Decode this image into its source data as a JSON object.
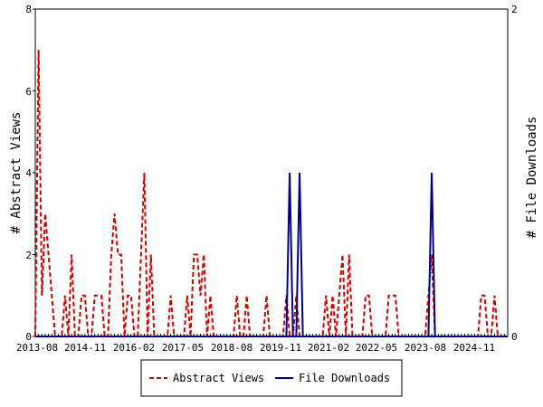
{
  "chart_data": {
    "type": "line",
    "x_tick_labels": [
      "2013-08",
      "2014-11",
      "2016-02",
      "2017-05",
      "2018-08",
      "2019-11",
      "2021-02",
      "2022-05",
      "2023-08",
      "2024-11"
    ],
    "y_left": {
      "label": "# Abstract Views",
      "ticks": [
        "0",
        "2",
        "4",
        "6",
        "8"
      ],
      "range": [
        0,
        8
      ]
    },
    "y_right": {
      "label": "# File Downloads",
      "ticks": [
        "0",
        "2"
      ],
      "range": [
        0,
        2
      ]
    },
    "months_start": "2013-08",
    "months_end": "2025-06",
    "series": [
      {
        "name": "Abstract Views",
        "axis": "left",
        "color": "#cc0000",
        "style": "dashed",
        "points": [
          [
            "2013-08",
            0
          ],
          [
            "2013-09",
            7
          ],
          [
            "2013-10",
            1
          ],
          [
            "2013-11",
            3
          ],
          [
            "2013-12",
            2
          ],
          [
            "2014-01",
            1
          ],
          [
            "2014-02",
            0
          ],
          [
            "2014-03",
            0
          ],
          [
            "2014-04",
            0
          ],
          [
            "2014-05",
            1
          ],
          [
            "2014-06",
            0
          ],
          [
            "2014-07",
            2
          ],
          [
            "2014-08",
            0
          ],
          [
            "2014-09",
            0
          ],
          [
            "2014-10",
            1
          ],
          [
            "2014-11",
            1
          ],
          [
            "2014-12",
            0
          ],
          [
            "2015-01",
            0
          ],
          [
            "2015-02",
            1
          ],
          [
            "2015-03",
            1
          ],
          [
            "2015-04",
            1
          ],
          [
            "2015-05",
            0
          ],
          [
            "2015-06",
            0
          ],
          [
            "2015-07",
            2
          ],
          [
            "2015-08",
            3
          ],
          [
            "2015-09",
            2
          ],
          [
            "2015-10",
            2
          ],
          [
            "2015-11",
            0
          ],
          [
            "2015-12",
            1
          ],
          [
            "2016-01",
            1
          ],
          [
            "2016-02",
            0
          ],
          [
            "2016-03",
            0
          ],
          [
            "2016-04",
            2
          ],
          [
            "2016-05",
            4
          ],
          [
            "2016-06",
            0
          ],
          [
            "2016-07",
            2
          ],
          [
            "2016-08",
            0
          ],
          [
            "2016-09",
            0
          ],
          [
            "2016-10",
            0
          ],
          [
            "2016-11",
            0
          ],
          [
            "2016-12",
            0
          ],
          [
            "2017-01",
            1
          ],
          [
            "2017-02",
            0
          ],
          [
            "2017-03",
            0
          ],
          [
            "2017-04",
            0
          ],
          [
            "2017-05",
            0
          ],
          [
            "2017-06",
            1
          ],
          [
            "2017-07",
            0
          ],
          [
            "2017-08",
            2
          ],
          [
            "2017-09",
            2
          ],
          [
            "2017-10",
            1
          ],
          [
            "2017-11",
            2
          ],
          [
            "2017-12",
            0
          ],
          [
            "2018-01",
            1
          ],
          [
            "2018-02",
            0
          ],
          [
            "2018-03",
            0
          ],
          [
            "2018-04",
            0
          ],
          [
            "2018-05",
            0
          ],
          [
            "2018-06",
            0
          ],
          [
            "2018-07",
            0
          ],
          [
            "2018-08",
            0
          ],
          [
            "2018-09",
            1
          ],
          [
            "2018-10",
            0
          ],
          [
            "2018-11",
            0
          ],
          [
            "2018-12",
            1
          ],
          [
            "2019-01",
            0
          ],
          [
            "2019-02",
            0
          ],
          [
            "2019-03",
            0
          ],
          [
            "2019-04",
            0
          ],
          [
            "2019-05",
            0
          ],
          [
            "2019-06",
            1
          ],
          [
            "2019-07",
            0
          ],
          [
            "2019-08",
            0
          ],
          [
            "2019-09",
            0
          ],
          [
            "2019-10",
            0
          ],
          [
            "2019-11",
            0
          ],
          [
            "2019-12",
            1
          ],
          [
            "2020-01",
            0
          ],
          [
            "2020-02",
            0
          ],
          [
            "2020-03",
            1
          ],
          [
            "2020-04",
            0
          ],
          [
            "2020-05",
            0
          ],
          [
            "2020-06",
            0
          ],
          [
            "2020-07",
            0
          ],
          [
            "2020-08",
            0
          ],
          [
            "2020-09",
            0
          ],
          [
            "2020-10",
            0
          ],
          [
            "2020-11",
            0
          ],
          [
            "2020-12",
            1
          ],
          [
            "2021-01",
            0
          ],
          [
            "2021-02",
            1
          ],
          [
            "2021-03",
            0
          ],
          [
            "2021-04",
            1
          ],
          [
            "2021-05",
            2
          ],
          [
            "2021-06",
            0
          ],
          [
            "2021-07",
            2
          ],
          [
            "2021-08",
            0
          ],
          [
            "2021-09",
            0
          ],
          [
            "2021-10",
            0
          ],
          [
            "2021-11",
            0
          ],
          [
            "2021-12",
            1
          ],
          [
            "2022-01",
            1
          ],
          [
            "2022-02",
            0
          ],
          [
            "2022-03",
            0
          ],
          [
            "2022-04",
            0
          ],
          [
            "2022-05",
            0
          ],
          [
            "2022-06",
            0
          ],
          [
            "2022-07",
            1
          ],
          [
            "2022-08",
            1
          ],
          [
            "2022-09",
            1
          ],
          [
            "2022-10",
            0
          ],
          [
            "2022-11",
            0
          ],
          [
            "2022-12",
            0
          ],
          [
            "2023-01",
            0
          ],
          [
            "2023-02",
            0
          ],
          [
            "2023-03",
            0
          ],
          [
            "2023-04",
            0
          ],
          [
            "2023-05",
            0
          ],
          [
            "2023-06",
            0
          ],
          [
            "2023-07",
            1
          ],
          [
            "2023-08",
            2
          ],
          [
            "2023-09",
            0
          ],
          [
            "2023-10",
            0
          ],
          [
            "2023-11",
            0
          ],
          [
            "2023-12",
            0
          ],
          [
            "2024-01",
            0
          ],
          [
            "2024-02",
            0
          ],
          [
            "2024-03",
            0
          ],
          [
            "2024-04",
            0
          ],
          [
            "2024-05",
            0
          ],
          [
            "2024-06",
            0
          ],
          [
            "2024-07",
            0
          ],
          [
            "2024-08",
            0
          ],
          [
            "2024-09",
            0
          ],
          [
            "2024-10",
            0
          ],
          [
            "2024-11",
            1
          ],
          [
            "2024-12",
            1
          ],
          [
            "2025-01",
            0
          ],
          [
            "2025-02",
            0
          ],
          [
            "2025-03",
            1
          ],
          [
            "2025-04",
            0
          ],
          [
            "2025-05",
            0
          ],
          [
            "2025-06",
            0
          ]
        ]
      },
      {
        "name": "File Downloads",
        "axis": "right",
        "color": "#00008b",
        "style": "solid",
        "points": [
          [
            "2019-12",
            0
          ],
          [
            "2020-01",
            1
          ],
          [
            "2020-02",
            0
          ],
          [
            "2020-03",
            0
          ],
          [
            "2020-04",
            1
          ],
          [
            "2020-05",
            0
          ],
          [
            "2023-07",
            0
          ],
          [
            "2023-08",
            1
          ],
          [
            "2023-09",
            0
          ]
        ]
      }
    ],
    "legend": {
      "position": "bottom-center",
      "entries": [
        "Abstract Views",
        "File Downloads"
      ]
    }
  }
}
